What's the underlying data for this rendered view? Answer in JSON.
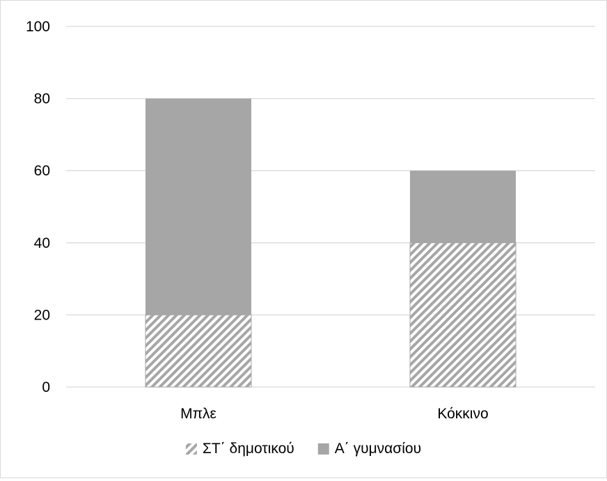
{
  "chart_data": {
    "type": "bar",
    "stacked": true,
    "categories": [
      "Μπλε",
      "Κόκκινο"
    ],
    "series": [
      {
        "name": "ΣΤ΄ δημοτικού",
        "values": [
          20,
          40
        ],
        "pattern": "diagonal-hatch",
        "color": "#a6a6a6"
      },
      {
        "name": "Α΄ γυμνασίου",
        "values": [
          60,
          20
        ],
        "pattern": "solid",
        "color": "#a6a6a6"
      }
    ],
    "yticks": [
      "0",
      "20",
      "40",
      "60",
      "80",
      "100"
    ],
    "ylim": [
      0,
      100
    ],
    "title": "",
    "xlabel": "",
    "ylabel": "",
    "grid": true,
    "legend_position": "bottom",
    "colors": {
      "gridline": "#d9d9d9",
      "frame": "#d9d9d9",
      "hatch_background": "#ffffff",
      "hatch_stroke": "#a6a6a6",
      "bar_fill": "#a6a6a6"
    }
  }
}
